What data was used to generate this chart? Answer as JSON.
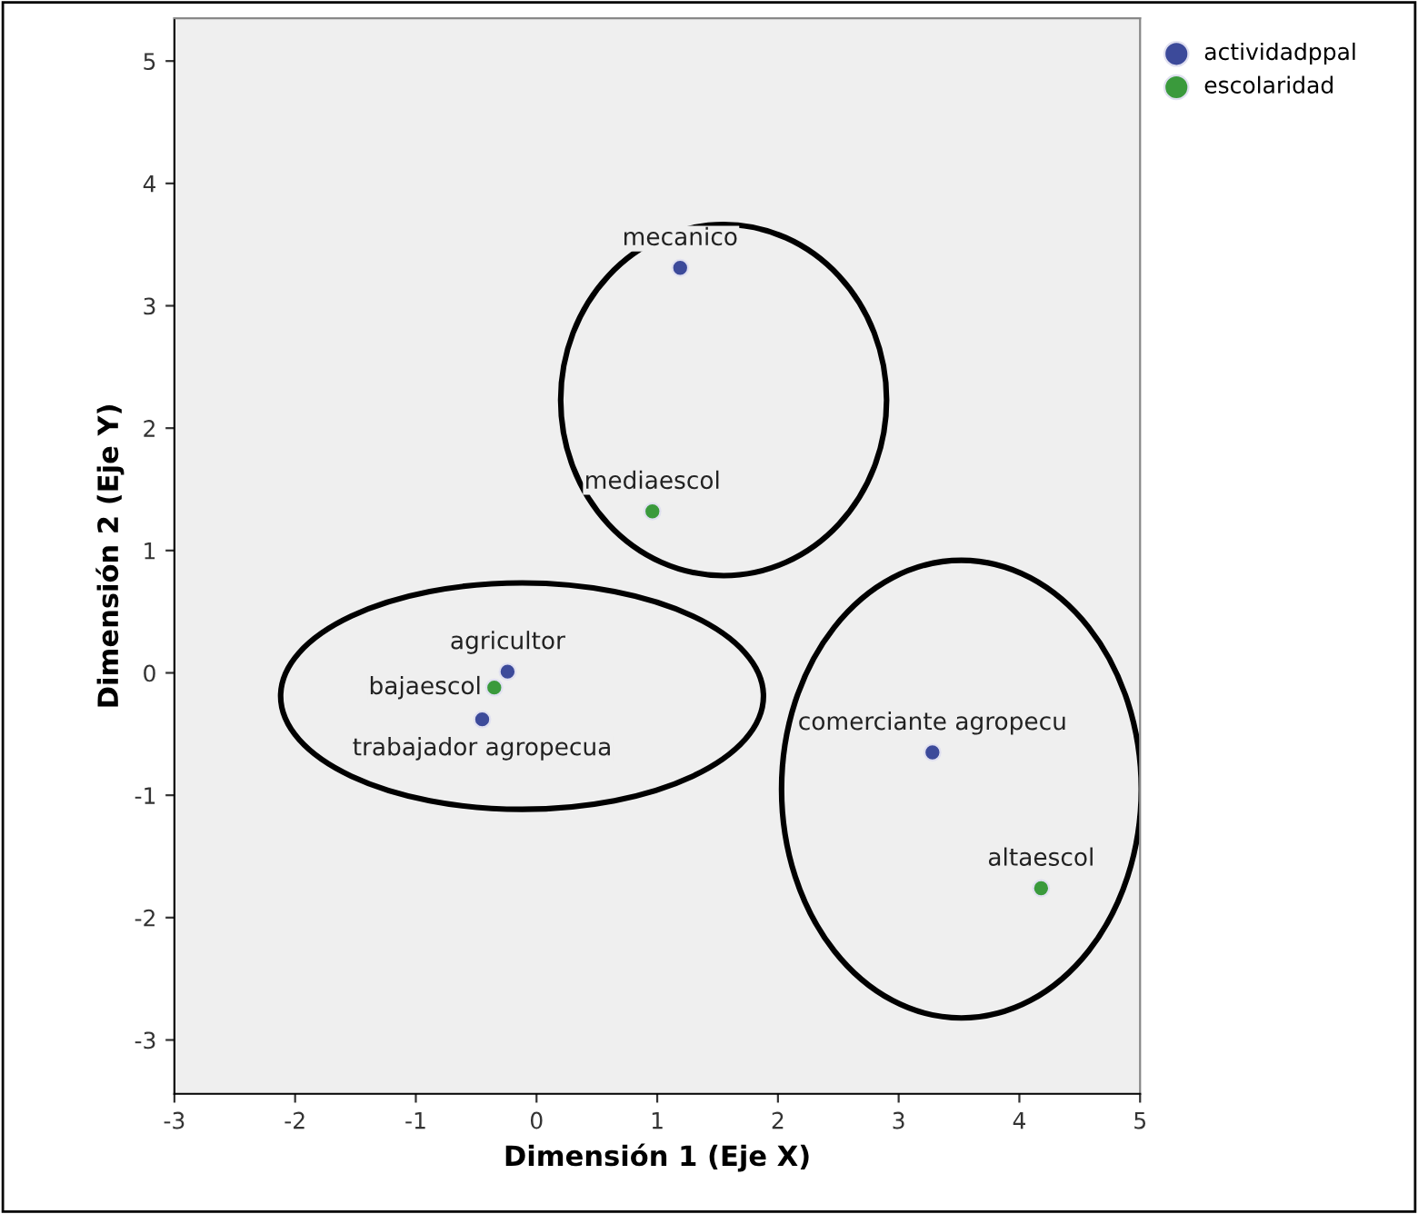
{
  "chart_data": {
    "type": "scatter",
    "xlabel": "Dimensión 1 (Eje X)",
    "ylabel": "Dimensión 2 (Eje Y)",
    "series": [
      {
        "name": "actividadppal",
        "color": "#3c4a9a",
        "x": [
          -0.24,
          -0.45,
          3.28,
          1.19
        ],
        "values": [
          0.01,
          -0.38,
          -0.65,
          3.31
        ]
      },
      {
        "name": "escolaridad",
        "color": "#3a9a3c",
        "x": [
          -0.35,
          0.96,
          4.18
        ],
        "values": [
          -0.12,
          1.32,
          -1.76
        ]
      }
    ],
    "annotations": [
      {
        "text": "agricultor",
        "x": -0.24,
        "y": 0.01
      },
      {
        "text": "trabajador agropecua",
        "x": -0.45,
        "y": -0.38
      },
      {
        "text": "comerciante agropecu",
        "x": 3.28,
        "y": -0.65
      },
      {
        "text": "mecanico",
        "x": 1.19,
        "y": 3.31
      },
      {
        "text": "bajaescol",
        "x": -0.35,
        "y": -0.12
      },
      {
        "text": "mediaescol",
        "x": 0.96,
        "y": 1.32
      },
      {
        "text": "altaescol",
        "x": 4.18,
        "y": -1.76
      }
    ],
    "xlim": [
      -3,
      5
    ],
    "ylim": [
      -3.44,
      5.35
    ],
    "xticks": [
      -3,
      -2,
      -1,
      0,
      1,
      2,
      3,
      4,
      5
    ],
    "yticks": [
      -3,
      -2,
      -1,
      0,
      1,
      2,
      3,
      4,
      5
    ],
    "grid": false,
    "legend": "top right",
    "marker": "circle"
  }
}
